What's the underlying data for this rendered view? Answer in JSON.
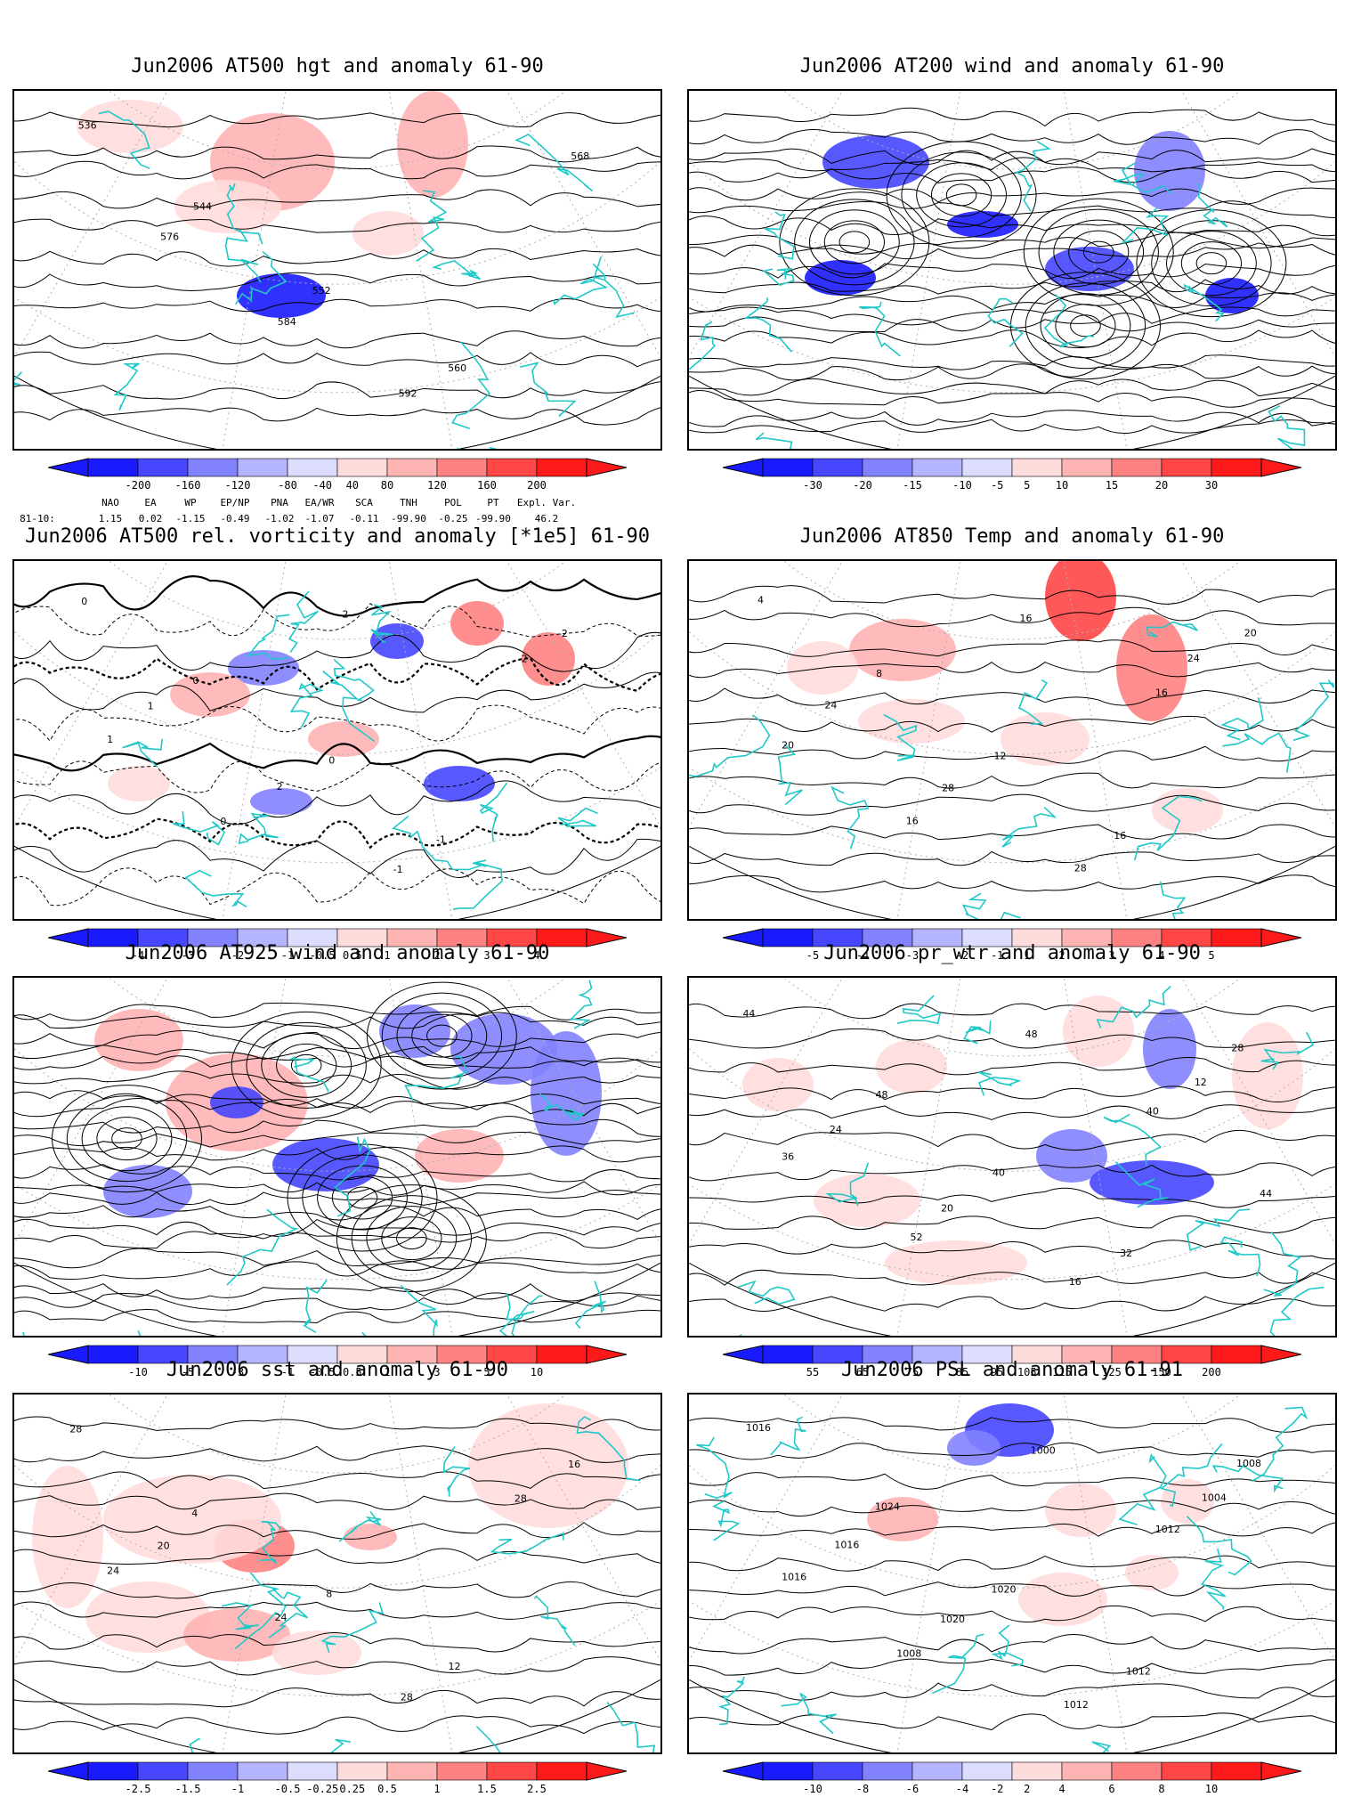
{
  "colors": {
    "coastline": "#20c8c8",
    "contour": "#000000",
    "grid": "#b0b0b0",
    "neg": [
      "#1a1aff",
      "#4646ff",
      "#8282ff",
      "#b4b4ff",
      "#dcdcff"
    ],
    "pos": [
      "#ffdcdc",
      "#ffb4b4",
      "#ff8282",
      "#ff4646",
      "#ff1a1a"
    ]
  },
  "panels": [
    {
      "id": "p1",
      "title": "Jun2006 AT500 hgt and anomaly 61-90",
      "style": "contour",
      "contour_labels": [
        "536",
        "544",
        "552",
        "560",
        "568",
        "576",
        "584",
        "592"
      ],
      "colorbar": [
        "-200",
        "-160",
        "-120",
        "-80",
        "-40",
        "40",
        "80",
        "120",
        "160",
        "200"
      ],
      "telecon": {
        "headers": [
          "NAO",
          "EA",
          "WP",
          "EP/NP",
          "PNA",
          "EA/WR",
          "SCA",
          "TNH",
          "POL",
          "PT",
          "Expl. Var."
        ],
        "row_label": "81-10:",
        "values": [
          "1.15",
          "0.02",
          "-1.15",
          "-0.49",
          "-1.02",
          "-1.07",
          "-0.11",
          "-99.90",
          "-0.25",
          "-99.90",
          "46.2"
        ]
      }
    },
    {
      "id": "p2",
      "title": "Jun2006 AT200 wind and anomaly 61-90",
      "style": "stream",
      "contour_labels": [],
      "colorbar": [
        "-30",
        "-20",
        "-15",
        "-10",
        "-5",
        "5",
        "10",
        "15",
        "20",
        "30"
      ]
    },
    {
      "id": "p3",
      "title": "Jun2006 AT500 rel. vorticity and anomaly [*1e5] 61-90",
      "style": "vort",
      "contour_labels": [
        "0",
        "0",
        "0",
        "-1",
        "-2",
        "1",
        "2",
        "-1",
        "-2",
        "1",
        "0",
        "2"
      ],
      "colorbar": [
        "-4",
        "-3",
        "-2",
        "-1",
        "-0.5",
        "0.5",
        "1",
        "2",
        "3",
        "4"
      ]
    },
    {
      "id": "p4",
      "title": "Jun2006 AT850 Temp and anomaly 61-90",
      "style": "contour",
      "contour_labels": [
        "4",
        "8",
        "12",
        "16",
        "20",
        "24",
        "28",
        "28",
        "24",
        "20",
        "16",
        "16",
        "16"
      ],
      "colorbar": [
        "-5",
        "-4",
        "-3",
        "-2",
        "-1",
        "1",
        "2",
        "3",
        "4",
        "5"
      ]
    },
    {
      "id": "p5",
      "title": "Jun2006 AT925 wind and anomaly 61-90",
      "style": "stream",
      "contour_labels": [],
      "colorbar": [
        "-10",
        "-5",
        "-3",
        "-1",
        "-0.5",
        "0.5",
        "1",
        "3",
        "5",
        "10"
      ]
    },
    {
      "id": "p6",
      "title": "Jun2006 pr_wtr and anomaly 61-90",
      "style": "contour",
      "contour_labels": [
        "44",
        "48",
        "40",
        "32",
        "28",
        "24",
        "20",
        "16",
        "12",
        "36",
        "52",
        "48",
        "40",
        "44"
      ],
      "colorbar": [
        "55",
        "65",
        "75",
        "85",
        "95",
        "105",
        "115",
        "125",
        "150",
        "200"
      ]
    },
    {
      "id": "p7",
      "title": "Jun2006 sst and anomaly 61-90",
      "style": "contour",
      "contour_labels": [
        "28",
        "4",
        "8",
        "12",
        "16",
        "20",
        "24",
        "28",
        "28",
        "24"
      ],
      "colorbar": [
        "-2.5",
        "-1.5",
        "-1",
        "-0.5",
        "-0.25",
        "0.25",
        "0.5",
        "1",
        "1.5",
        "2.5"
      ]
    },
    {
      "id": "p8",
      "title": "Jun2006 PSL and anomaly 61-91",
      "style": "contour",
      "contour_labels": [
        "1016",
        "1024",
        "1020",
        "1012",
        "1008",
        "1016",
        "1020",
        "1012",
        "1004",
        "1016",
        "1008",
        "1000",
        "1012"
      ],
      "colorbar": [
        "-10",
        "-8",
        "-6",
        "-4",
        "-2",
        "2",
        "4",
        "6",
        "8",
        "10"
      ]
    }
  ]
}
